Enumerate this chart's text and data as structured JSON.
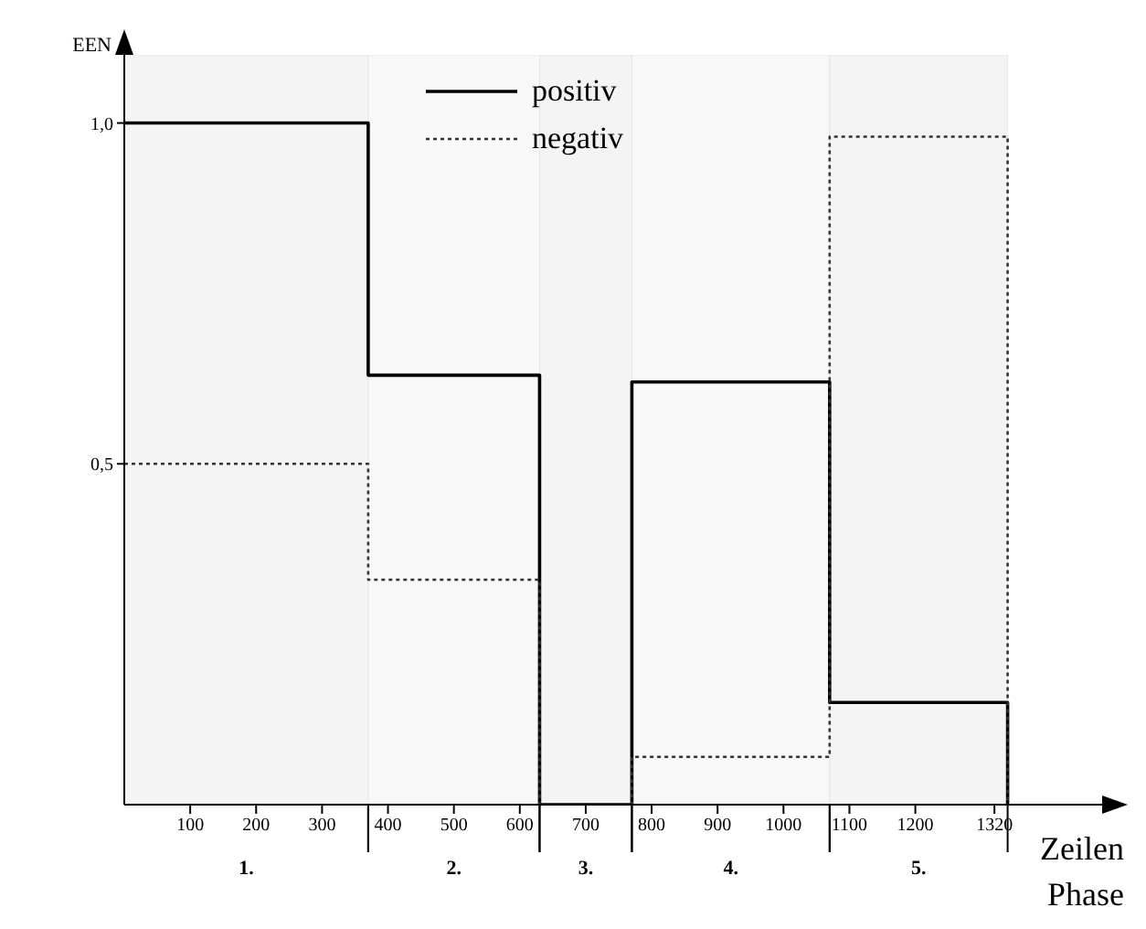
{
  "chart_data": {
    "type": "step",
    "ylabel": "EEN",
    "xlabel": "Zeilen",
    "x": [
      0,
      370,
      630,
      770,
      1070,
      1340
    ],
    "series": [
      {
        "name": "positiv",
        "color": "#000000",
        "line_style": "solid",
        "values": [
          1.0,
          0.63,
          0,
          0.62,
          0.15,
          0
        ]
      },
      {
        "name": "negativ",
        "color": "#333333",
        "line_style": "dotted",
        "values": [
          0.5,
          0.33,
          0,
          0.07,
          0.98,
          0
        ]
      }
    ],
    "xlim": [
      0,
      1500
    ],
    "xticks": [
      100,
      200,
      300,
      400,
      500,
      600,
      700,
      800,
      900,
      1000,
      1100,
      1200,
      1320
    ],
    "ylim": [
      0,
      1.1
    ],
    "yticks": [
      {
        "value": 0.5,
        "label": "0,5"
      },
      {
        "value": 1,
        "label": "1,0"
      }
    ],
    "bands": [
      {
        "axis": "x",
        "from": 0,
        "to": 370,
        "label": "1.",
        "color": "#f4f4f4"
      },
      {
        "axis": "x",
        "from": 370,
        "to": 630,
        "label": "2.",
        "color": "#f8f8f8"
      },
      {
        "axis": "x",
        "from": 630,
        "to": 770,
        "label": "3.",
        "color": "#f4f4f4"
      },
      {
        "axis": "x",
        "from": 770,
        "to": 1070,
        "label": "4.",
        "color": "#f8f8f8"
      },
      {
        "axis": "x",
        "from": 1070,
        "to": 1340,
        "label": "5.",
        "color": "#f4f4f4"
      }
    ],
    "annotations": [
      "Phase"
    ],
    "grid": false,
    "legend": "top",
    "marker": "none"
  }
}
